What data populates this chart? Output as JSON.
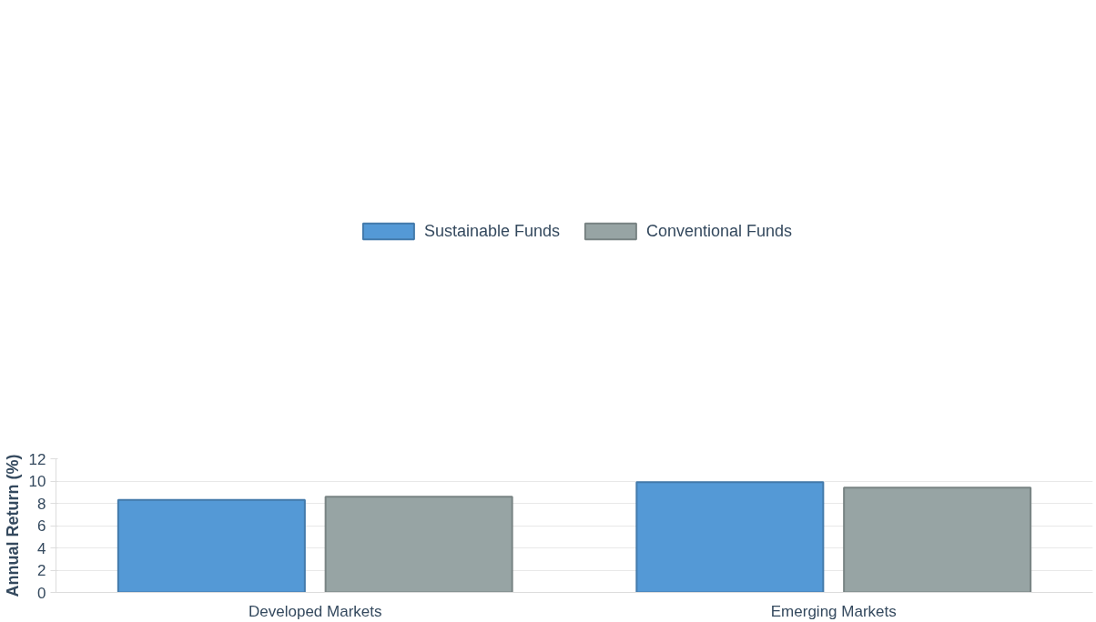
{
  "chart_data": {
    "type": "bar",
    "ylabel": "Annual Return (%)",
    "categories": [
      "Developed Markets",
      "Emerging Markets"
    ],
    "series": [
      {
        "name": "Sustainable Funds",
        "color": "#5499d6",
        "values": [
          8.3,
          9.9
        ]
      },
      {
        "name": "Conventional Funds",
        "color": "#97a4a4",
        "values": [
          8.6,
          9.4
        ]
      }
    ],
    "ylim": [
      0,
      12
    ],
    "yticks": [
      0,
      2,
      4,
      6,
      8,
      10,
      12
    ],
    "grid": "y",
    "legend": "top"
  }
}
